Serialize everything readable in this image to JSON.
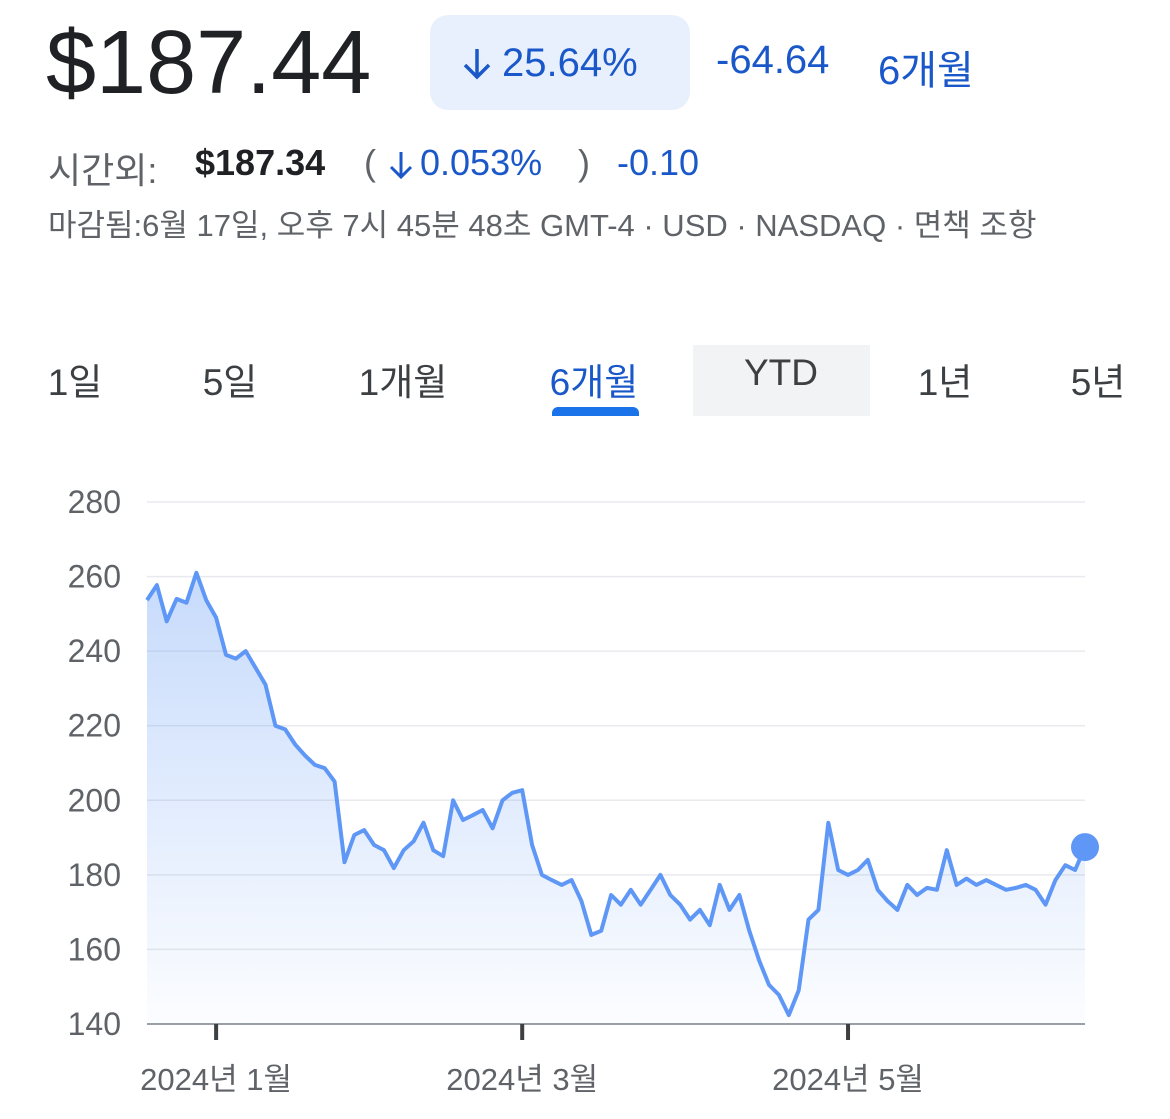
{
  "header": {
    "price": "$187.44",
    "change_pct": "25.64%",
    "change": "-64.64",
    "period": "6개월",
    "after_hours_label": "시간외:",
    "after_hours_price": "$187.34",
    "after_hours_pct": "0.053%",
    "after_hours_change": "-0.10",
    "status": "마감됨:6월 17일, 오후 7시 45분 48초 GMT-4 · USD · NASDAQ · 면책 조항"
  },
  "tabs": [
    "1일",
    "5일",
    "1개월",
    "6개월",
    "YTD",
    "1년",
    "5년"
  ],
  "selected_tab": "6개월",
  "hovered_tab": "YTD",
  "chart_data": {
    "type": "line",
    "color": "#5e97f6",
    "categories": [
      null,
      null,
      null,
      null,
      null,
      null,
      null,
      "2024년 1월",
      null,
      null,
      null,
      null,
      null,
      null,
      null,
      null,
      null,
      null,
      null,
      null,
      null,
      null,
      null,
      null,
      null,
      null,
      null,
      null,
      null,
      null,
      null,
      null,
      null,
      null,
      null,
      null,
      null,
      null,
      "2024년 3월",
      null,
      null,
      null,
      null,
      null,
      null,
      null,
      null,
      null,
      null,
      null,
      null,
      null,
      null,
      null,
      null,
      null,
      null,
      null,
      null,
      null,
      null,
      null,
      null,
      null,
      null,
      null,
      null,
      null,
      null,
      null,
      null,
      "2024년 5월",
      null,
      null,
      null,
      null,
      null,
      null,
      null,
      null,
      null,
      null,
      null,
      null,
      null,
      null,
      null,
      null,
      null,
      null,
      null,
      null,
      null,
      null,
      null,
      null
    ],
    "values": [
      253.7,
      257.7,
      248,
      254,
      253,
      261,
      253.7,
      249,
      239,
      238,
      240,
      235.5,
      231,
      220,
      219,
      215,
      212,
      209.5,
      208.6,
      205,
      183.4,
      190.7,
      192,
      188,
      186.6,
      181.8,
      186.6,
      189,
      194,
      186.6,
      185,
      200,
      194.7,
      196,
      197.4,
      192.5,
      200,
      202,
      202.7,
      188,
      180,
      178.6,
      177.3,
      178.6,
      173,
      163.9,
      165,
      174.6,
      172,
      176,
      172,
      176,
      180,
      174.6,
      172,
      168,
      170.6,
      166.5,
      177.3,
      170.6,
      174.6,
      165,
      157,
      150.5,
      147.8,
      142.4,
      149,
      168,
      170.6,
      194,
      181.3,
      180,
      181.3,
      184,
      176,
      173,
      170.6,
      177.3,
      174.6,
      176.5,
      176,
      186.6,
      177.3,
      179,
      177.3,
      178.6,
      177.3,
      176,
      176.5,
      177.3,
      176,
      172,
      178.6,
      182.6,
      181.3,
      187.44
    ],
    "ylim": [
      140,
      280
    ],
    "yticks": [
      140,
      160,
      180,
      200,
      220,
      240,
      260,
      280
    ],
    "grid": true
  }
}
